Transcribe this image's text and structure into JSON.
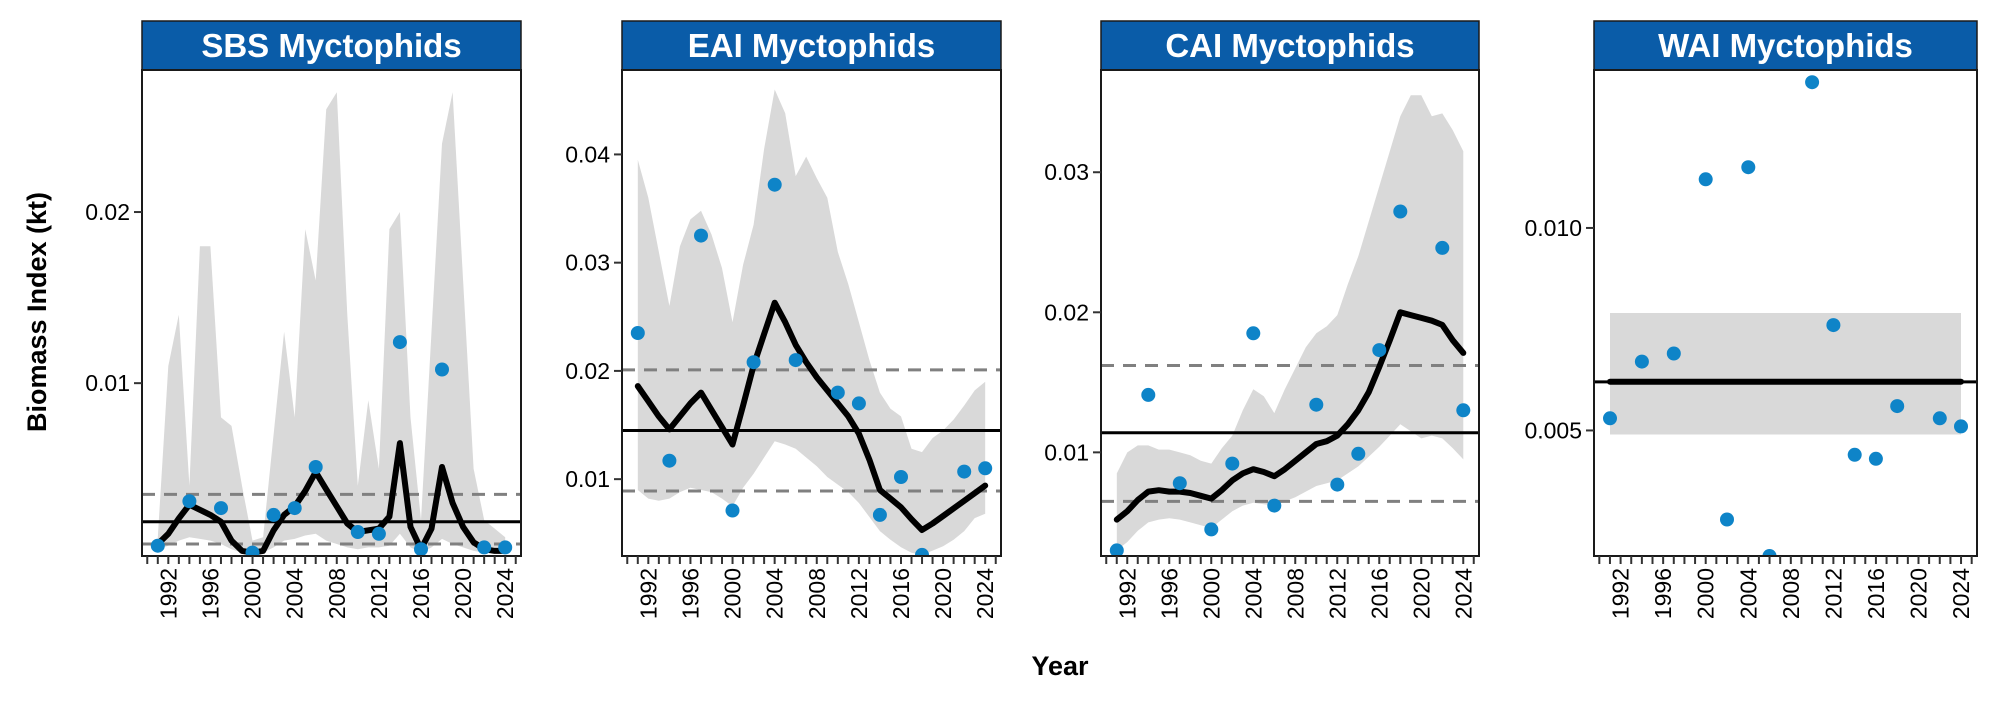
{
  "figure": {
    "xlabel": "Year",
    "ylabel": "Biomass Index (kt)"
  },
  "colors": {
    "strip": "#0a5ca8",
    "point": "#0e84c8",
    "ribbon": "#d9d9d9",
    "line": "#000000",
    "mean": "#000000",
    "bounds": "#808080"
  },
  "chart_data": [
    {
      "type": "line",
      "title": "SBS Myctophids",
      "xlim": [
        1989.5,
        2025.5
      ],
      "ylim": [
        -0.0001,
        0.0283
      ],
      "xticks": [
        1992,
        1996,
        2000,
        2004,
        2008,
        2012,
        2016,
        2020,
        2024
      ],
      "yticks": [
        0.01,
        0.02
      ],
      "ytick_labels": [
        "0.01",
        "0.02"
      ],
      "series": [
        {
          "kind": "points",
          "x": [
            1991,
            1994,
            1997,
            2000,
            2002,
            2004,
            2006,
            2010,
            2012,
            2014,
            2016,
            2018,
            2022,
            2024
          ],
          "y": [
            0.0005,
            0.0031,
            0.0027,
            0.0001,
            0.0023,
            0.0027,
            0.0051,
            0.0013,
            0.0012,
            0.0124,
            0.0003,
            0.0108,
            0.0004,
            0.0004
          ]
        },
        {
          "kind": "fit",
          "x": [
            1991,
            1992,
            1993,
            1994,
            1995,
            1996,
            1997,
            1998,
            1999,
            2000,
            2001,
            2002,
            2003,
            2004,
            2005,
            2006,
            2007,
            2008,
            2009,
            2010,
            2011,
            2012,
            2013,
            2014,
            2015,
            2016,
            2017,
            2018,
            2019,
            2020,
            2021,
            2022,
            2023,
            2024
          ],
          "y": [
            0.0006,
            0.0012,
            0.0021,
            0.0029,
            0.0026,
            0.0023,
            0.0019,
            0.0008,
            0.0002,
            0.0001,
            0.0002,
            0.0014,
            0.0023,
            0.0028,
            0.0037,
            0.0048,
            0.0038,
            0.0028,
            0.0018,
            0.0013,
            0.0014,
            0.0015,
            0.0022,
            0.0065,
            0.0016,
            0.0003,
            0.0015,
            0.0051,
            0.003,
            0.0016,
            0.0007,
            0.0003,
            0.0002,
            0.0002
          ]
        },
        {
          "kind": "ci",
          "x": [
            1991,
            1992,
            1993,
            1994,
            1995,
            1996,
            1997,
            1998,
            1999,
            2000,
            2001,
            2002,
            2003,
            2004,
            2005,
            2006,
            2007,
            2008,
            2009,
            2010,
            2011,
            2012,
            2013,
            2014,
            2015,
            2016,
            2017,
            2018,
            2019,
            2020,
            2021,
            2022,
            2023,
            2024
          ],
          "upper": [
            0.001,
            0.011,
            0.014,
            0.004,
            0.018,
            0.018,
            0.008,
            0.0075,
            0.004,
            0.0008,
            0.001,
            0.007,
            0.013,
            0.008,
            0.019,
            0.016,
            0.026,
            0.027,
            0.014,
            0.004,
            0.009,
            0.005,
            0.019,
            0.02,
            0.008,
            0.002,
            0.013,
            0.024,
            0.027,
            0.016,
            0.005,
            0.002,
            0.0015,
            0.001
          ],
          "lower": [
            0.0003,
            0.0005,
            0.0008,
            0.001,
            0.0009,
            0.0008,
            0.0006,
            0.0003,
            0.0001,
            0.0,
            0.0001,
            0.0004,
            0.0008,
            0.0009,
            0.0011,
            0.0012,
            0.0008,
            0.0006,
            0.0004,
            0.0003,
            0.0004,
            0.0004,
            0.0005,
            0.0012,
            0.0004,
            0.0001,
            0.0004,
            0.0009,
            0.0006,
            0.0004,
            0.0002,
            0.0001,
            0.0001,
            0.0001
          ]
        }
      ],
      "mean": 0.0019,
      "bounds": [
        0.0035,
        0.0006
      ]
    },
    {
      "type": "line",
      "title": "EAI Myctophids",
      "xlim": [
        1989.5,
        2025.5
      ],
      "ylim": [
        0.0029,
        0.0478
      ],
      "xticks": [
        1992,
        1996,
        2000,
        2004,
        2008,
        2012,
        2016,
        2020,
        2024
      ],
      "yticks": [
        0.01,
        0.02,
        0.03,
        0.04
      ],
      "ytick_labels": [
        "0.01",
        "0.02",
        "0.03",
        "0.04"
      ],
      "series": [
        {
          "kind": "points",
          "x": [
            1991,
            1994,
            1997,
            2000,
            2002,
            2004,
            2006,
            2010,
            2012,
            2014,
            2016,
            2018,
            2022,
            2024
          ],
          "y": [
            0.0235,
            0.0117,
            0.0325,
            0.0071,
            0.0208,
            0.0372,
            0.021,
            0.018,
            0.017,
            0.0067,
            0.0102,
            0.003,
            0.0107,
            0.011
          ]
        },
        {
          "kind": "fit",
          "x": [
            1991,
            1992,
            1993,
            1994,
            1995,
            1996,
            1997,
            1998,
            1999,
            2000,
            2001,
            2002,
            2003,
            2004,
            2005,
            2006,
            2007,
            2008,
            2009,
            2010,
            2011,
            2012,
            2013,
            2014,
            2015,
            2016,
            2017,
            2018,
            2019,
            2020,
            2021,
            2022,
            2023,
            2024
          ],
          "y": [
            0.0186,
            0.0172,
            0.0158,
            0.0146,
            0.0158,
            0.017,
            0.018,
            0.0164,
            0.0148,
            0.0132,
            0.0168,
            0.0205,
            0.0234,
            0.0263,
            0.0245,
            0.0224,
            0.0208,
            0.0194,
            0.0182,
            0.017,
            0.0158,
            0.0142,
            0.0118,
            0.009,
            0.0082,
            0.0074,
            0.0063,
            0.0053,
            0.0059,
            0.0066,
            0.0073,
            0.008,
            0.0087,
            0.0094
          ]
        },
        {
          "kind": "ci",
          "x": [
            1991,
            1992,
            1993,
            1994,
            1995,
            1996,
            1997,
            1998,
            1999,
            2000,
            2001,
            2002,
            2003,
            2004,
            2005,
            2006,
            2007,
            2008,
            2009,
            2010,
            2011,
            2012,
            2013,
            2014,
            2015,
            2016,
            2017,
            2018,
            2019,
            2020,
            2021,
            2022,
            2023,
            2024
          ],
          "upper": [
            0.0395,
            0.036,
            0.031,
            0.026,
            0.0315,
            0.034,
            0.0348,
            0.0326,
            0.0295,
            0.0245,
            0.0298,
            0.0335,
            0.0405,
            0.046,
            0.0438,
            0.038,
            0.0398,
            0.0378,
            0.036,
            0.031,
            0.028,
            0.0245,
            0.021,
            0.018,
            0.0165,
            0.0158,
            0.0128,
            0.0125,
            0.0138,
            0.0145,
            0.0155,
            0.0168,
            0.0182,
            0.019
          ],
          "lower": [
            0.009,
            0.0082,
            0.008,
            0.0082,
            0.0088,
            0.0092,
            0.009,
            0.0088,
            0.0082,
            0.0075,
            0.0092,
            0.0105,
            0.012,
            0.0135,
            0.0132,
            0.0128,
            0.012,
            0.0112,
            0.0102,
            0.0095,
            0.0088,
            0.0078,
            0.0065,
            0.0052,
            0.0044,
            0.0037,
            0.0032,
            0.003,
            0.0034,
            0.0038,
            0.0044,
            0.0052,
            0.0064,
            0.0068
          ]
        }
      ],
      "mean": 0.0145,
      "bounds": [
        0.0201,
        0.0089
      ]
    },
    {
      "type": "line",
      "title": "CAI Myctophids",
      "xlim": [
        1989.5,
        2025.5
      ],
      "ylim": [
        0.0026,
        0.0373
      ],
      "xticks": [
        1992,
        1996,
        2000,
        2004,
        2008,
        2012,
        2016,
        2020,
        2024
      ],
      "yticks": [
        0.01,
        0.02,
        0.03
      ],
      "ytick_labels": [
        "0.01",
        "0.02",
        "0.03"
      ],
      "series": [
        {
          "kind": "points",
          "x": [
            1991,
            1994,
            1997,
            2000,
            2002,
            2004,
            2006,
            2010,
            2012,
            2014,
            2016,
            2018,
            2022,
            2024
          ],
          "y": [
            0.003,
            0.0141,
            0.0078,
            0.0045,
            0.0092,
            0.0185,
            0.0062,
            0.0134,
            0.0077,
            0.0099,
            0.0173,
            0.0272,
            0.0246,
            0.013
          ]
        },
        {
          "kind": "fit",
          "x": [
            1991,
            1992,
            1993,
            1994,
            1995,
            1996,
            1997,
            1998,
            1999,
            2000,
            2001,
            2002,
            2003,
            2004,
            2005,
            2006,
            2007,
            2008,
            2009,
            2010,
            2011,
            2012,
            2013,
            2014,
            2015,
            2016,
            2017,
            2018,
            2019,
            2020,
            2021,
            2022,
            2023,
            2024
          ],
          "y": [
            0.0052,
            0.0058,
            0.0066,
            0.0072,
            0.0073,
            0.0072,
            0.0072,
            0.0071,
            0.0069,
            0.0067,
            0.0073,
            0.008,
            0.0085,
            0.0088,
            0.0086,
            0.0083,
            0.0088,
            0.0094,
            0.01,
            0.0106,
            0.0108,
            0.0112,
            0.012,
            0.013,
            0.0143,
            0.0161,
            0.018,
            0.02,
            0.0198,
            0.0196,
            0.0194,
            0.0191,
            0.018,
            0.0171
          ]
        },
        {
          "kind": "ci",
          "x": [
            1991,
            1992,
            1993,
            1994,
            1995,
            1996,
            1997,
            1998,
            1999,
            2000,
            2001,
            2002,
            2003,
            2004,
            2005,
            2006,
            2007,
            2008,
            2009,
            2010,
            2011,
            2012,
            2013,
            2014,
            2015,
            2016,
            2017,
            2018,
            2019,
            2020,
            2021,
            2022,
            2023,
            2024
          ],
          "upper": [
            0.0085,
            0.01,
            0.0105,
            0.0105,
            0.0102,
            0.0102,
            0.01,
            0.0098,
            0.0094,
            0.0092,
            0.0103,
            0.0112,
            0.013,
            0.0145,
            0.014,
            0.0128,
            0.0145,
            0.016,
            0.0175,
            0.0185,
            0.019,
            0.0198,
            0.022,
            0.024,
            0.0265,
            0.029,
            0.0315,
            0.034,
            0.0355,
            0.0355,
            0.034,
            0.0342,
            0.033,
            0.0315
          ],
          "lower": [
            0.003,
            0.0036,
            0.0044,
            0.005,
            0.0052,
            0.0053,
            0.0052,
            0.005,
            0.0048,
            0.0046,
            0.0052,
            0.0058,
            0.0062,
            0.0064,
            0.0063,
            0.0062,
            0.0065,
            0.0068,
            0.0072,
            0.0076,
            0.0078,
            0.008,
            0.0085,
            0.009,
            0.0097,
            0.0104,
            0.0112,
            0.012,
            0.0115,
            0.011,
            0.0112,
            0.011,
            0.0103,
            0.0095
          ]
        }
      ],
      "mean": 0.0114,
      "bounds": [
        0.0162,
        0.0065
      ]
    },
    {
      "type": "line",
      "title": "WAI Myctophids",
      "xlim": [
        1989.5,
        2025.5
      ],
      "ylim": [
        0.0019,
        0.0139
      ],
      "xticks": [
        1992,
        1996,
        2000,
        2004,
        2008,
        2012,
        2016,
        2020,
        2024
      ],
      "yticks": [
        0.005,
        0.01
      ],
      "ytick_labels": [
        "0.005",
        "0.010"
      ],
      "series": [
        {
          "kind": "points",
          "x": [
            1991,
            1994,
            1997,
            2000,
            2002,
            2004,
            2006,
            2010,
            2012,
            2014,
            2016,
            2018,
            2022,
            2024
          ],
          "y": [
            0.0053,
            0.0067,
            0.0069,
            0.0112,
            0.0028,
            0.0115,
            0.0019,
            0.0136,
            0.0076,
            0.0044,
            0.0043,
            0.0056,
            0.0053,
            0.0051
          ]
        },
        {
          "kind": "fit",
          "x": [
            1991,
            2024
          ],
          "y": [
            0.0062,
            0.0062
          ]
        },
        {
          "kind": "ci",
          "x": [
            1991,
            2024
          ],
          "upper": [
            0.0079,
            0.0079
          ],
          "lower": [
            0.0049,
            0.0049
          ]
        }
      ],
      "mean": 0.0062,
      "bounds": []
    }
  ]
}
